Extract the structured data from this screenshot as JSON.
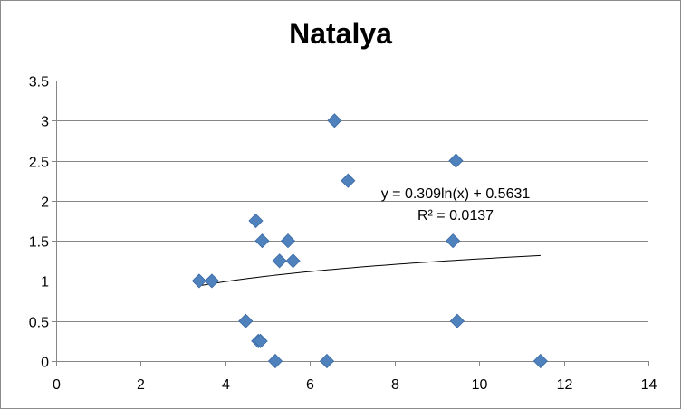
{
  "chart_data": {
    "type": "scatter",
    "title": "Natalya",
    "xlabel": "",
    "ylabel": "",
    "xlim": [
      0,
      14
    ],
    "ylim": [
      0,
      3.5
    ],
    "x_ticks": [
      0,
      2,
      4,
      6,
      8,
      10,
      12,
      14
    ],
    "y_ticks": [
      0,
      0.5,
      1,
      1.5,
      2,
      2.5,
      3,
      3.5
    ],
    "x_tick_labels": [
      "0",
      "2",
      "4",
      "6",
      "8",
      "10",
      "12",
      "14"
    ],
    "y_tick_labels": [
      "0",
      "0.5",
      "1",
      "1.5",
      "2",
      "2.5",
      "3",
      "3.5"
    ],
    "grid": "horizontal",
    "legend": "none",
    "marker_color": "#4f81bd",
    "series": [
      {
        "points": [
          [
            3.38,
            1.0
          ],
          [
            3.68,
            1.0
          ],
          [
            4.48,
            0.5
          ],
          [
            4.72,
            1.75
          ],
          [
            4.78,
            0.25
          ],
          [
            4.83,
            0.25
          ],
          [
            4.87,
            1.5
          ],
          [
            5.18,
            0.0
          ],
          [
            5.28,
            1.25
          ],
          [
            5.48,
            1.5
          ],
          [
            5.6,
            1.25
          ],
          [
            6.4,
            0.0
          ],
          [
            6.58,
            3.0
          ],
          [
            6.9,
            2.25
          ],
          [
            9.38,
            1.5
          ],
          [
            9.45,
            2.5
          ],
          [
            9.48,
            0.5
          ],
          [
            11.45,
            0.0
          ]
        ]
      }
    ],
    "trendline": {
      "type": "logarithmic",
      "a": 0.309,
      "b": 0.5631,
      "x_range": [
        3.38,
        11.45
      ],
      "equation_label": "y = 0.309ln(x) + 0.5631",
      "r2_label": "R² = 0.0137"
    }
  }
}
